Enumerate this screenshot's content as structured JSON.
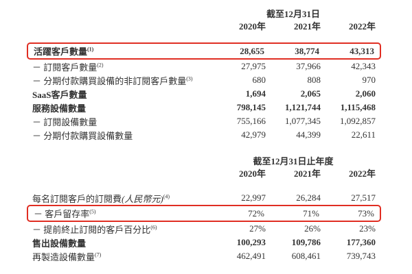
{
  "page": {
    "background": "#ffffff",
    "text_color": "#333333",
    "highlight_box_color": "#e02d22"
  },
  "sections": [
    {
      "header": "截至12月31日",
      "years": [
        "2020年",
        "2021年",
        "2022年"
      ],
      "rows": [
        {
          "label": "活躍客戶數量",
          "sup": "(1)",
          "values": [
            "28,655",
            "38,774",
            "43,313"
          ]
        },
        {
          "label": "－ 訂閱客戶數量",
          "sup": "(2)",
          "values": [
            "27,975",
            "37,966",
            "42,343"
          ]
        },
        {
          "label": "－ 分期付款購買設備的非訂閱客戶數量",
          "sup": "(3)",
          "values": [
            "680",
            "808",
            "970"
          ]
        },
        {
          "label": "SaaS客戶數量",
          "sup": "",
          "values": [
            "1,694",
            "2,065",
            "2,060"
          ]
        },
        {
          "label": "服務設備數量",
          "sup": "",
          "values": [
            "798,145",
            "1,121,744",
            "1,115,468"
          ]
        },
        {
          "label": "－ 訂閱設備數量",
          "sup": "",
          "values": [
            "755,166",
            "1,077,345",
            "1,092,857"
          ]
        },
        {
          "label": "－ 分期付款購買設備數量",
          "sup": "",
          "values": [
            "42,979",
            "44,399",
            "22,611"
          ]
        }
      ]
    },
    {
      "header": "截至12月31日止年度",
      "years": [
        "2020年",
        "2021年",
        "2022年"
      ],
      "rows": [
        {
          "label": "每名訂閱客戶的訂閱費",
          "label_em": "(人民幣元)",
          "sup": "(4)",
          "values": [
            "22,997",
            "26,284",
            "27,517"
          ]
        },
        {
          "label": "－ 客戶留存率",
          "sup": "(5)",
          "values": [
            "72%",
            "71%",
            "73%"
          ]
        },
        {
          "label": "－ 提前終止訂閱的客戶百分比",
          "sup": "(6)",
          "values": [
            "27%",
            "26%",
            "23%"
          ]
        },
        {
          "label": "售出設備數量",
          "sup": "",
          "values": [
            "100,293",
            "109,786",
            "177,360"
          ]
        },
        {
          "label": "再製造設備數量",
          "sup": "(7)",
          "values": [
            "462,491",
            "608,461",
            "739,743"
          ]
        }
      ]
    }
  ]
}
